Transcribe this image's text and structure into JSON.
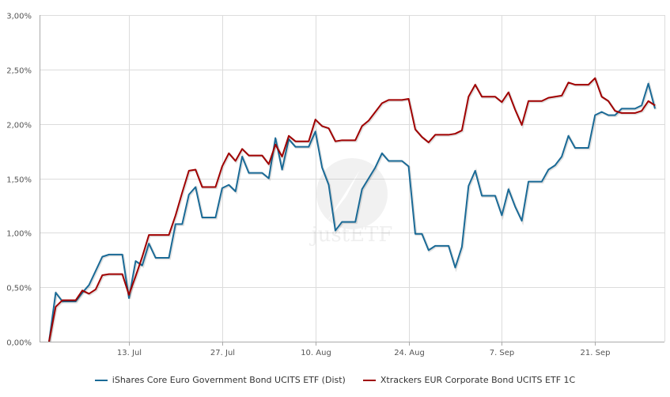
{
  "chart_data": {
    "type": "line",
    "title": "",
    "xlabel": "",
    "ylabel": "",
    "ylim": [
      0,
      3
    ],
    "y_ticks": [
      "0,00%",
      "0,50%",
      "1,00%",
      "1,50%",
      "2,00%",
      "2,50%",
      "3,00%"
    ],
    "y_tick_values": [
      0,
      0.5,
      1,
      1.5,
      2,
      2.5,
      3
    ],
    "x_ticks": [
      {
        "label": "13. Jul",
        "day": 12
      },
      {
        "label": "27. Jul",
        "day": 26
      },
      {
        "label": "10. Aug",
        "day": 40
      },
      {
        "label": "24. Aug",
        "day": 54
      },
      {
        "label": "7. Sep",
        "day": 68
      },
      {
        "label": "21. Sep",
        "day": 82
      }
    ],
    "x_range_days": [
      0,
      91
    ],
    "grid": true,
    "legend_position": "bottom",
    "watermark": "justETF",
    "series": [
      {
        "name": "iShares Core Euro Government Bond UCITS ETF (Dist)",
        "color": "#1a6a96",
        "values": [
          0,
          0.45,
          0.37,
          0.37,
          0.37,
          0.45,
          0.52,
          0.65,
          0.78,
          0.8,
          0.8,
          0.8,
          0.4,
          0.74,
          0.7,
          0.9,
          0.77,
          0.77,
          0.77,
          1.08,
          1.08,
          1.35,
          1.42,
          1.14,
          1.14,
          1.14,
          1.41,
          1.44,
          1.38,
          1.7,
          1.55,
          1.55,
          1.55,
          1.5,
          1.87,
          1.58,
          1.86,
          1.79,
          1.79,
          1.79,
          1.93,
          1.6,
          1.44,
          1.02,
          1.1,
          1.1,
          1.1,
          1.4,
          1.5,
          1.6,
          1.73,
          1.66,
          1.66,
          1.66,
          1.61,
          0.99,
          0.99,
          0.84,
          0.88,
          0.88,
          0.88,
          0.68,
          0.87,
          1.43,
          1.57,
          1.34,
          1.34,
          1.34,
          1.16,
          1.4,
          1.24,
          1.11,
          1.47,
          1.47,
          1.47,
          1.58,
          1.62,
          1.7,
          1.89,
          1.78,
          1.78,
          1.78,
          2.08,
          2.11,
          2.08,
          2.08,
          2.14,
          2.14,
          2.14,
          2.17,
          2.37,
          2.14
        ]
      },
      {
        "name": "Xtrackers EUR Corporate Bond UCITS ETF 1C",
        "color": "#a00000",
        "values": [
          0,
          0.32,
          0.38,
          0.38,
          0.38,
          0.47,
          0.44,
          0.48,
          0.61,
          0.62,
          0.62,
          0.62,
          0.43,
          0.6,
          0.78,
          0.98,
          0.98,
          0.98,
          0.98,
          1.16,
          1.37,
          1.57,
          1.58,
          1.42,
          1.42,
          1.42,
          1.61,
          1.73,
          1.66,
          1.77,
          1.71,
          1.71,
          1.71,
          1.63,
          1.81,
          1.7,
          1.89,
          1.84,
          1.84,
          1.84,
          2.04,
          1.98,
          1.96,
          1.84,
          1.85,
          1.85,
          1.85,
          1.98,
          2.03,
          2.11,
          2.19,
          2.22,
          2.22,
          2.22,
          2.23,
          1.95,
          1.88,
          1.83,
          1.9,
          1.9,
          1.9,
          1.91,
          1.94,
          2.25,
          2.36,
          2.25,
          2.25,
          2.25,
          2.2,
          2.29,
          2.13,
          1.99,
          2.21,
          2.21,
          2.21,
          2.24,
          2.25,
          2.26,
          2.38,
          2.36,
          2.36,
          2.36,
          2.42,
          2.25,
          2.21,
          2.12,
          2.1,
          2.1,
          2.1,
          2.12,
          2.21,
          2.17
        ]
      }
    ]
  }
}
